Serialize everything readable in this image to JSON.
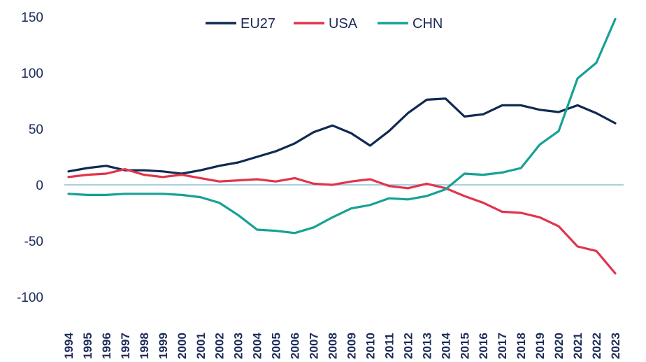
{
  "chart_data": {
    "type": "line",
    "title": "",
    "xlabel": "",
    "ylabel": "",
    "ylim": [
      -100,
      150
    ],
    "yticks": [
      -100,
      -50,
      0,
      50,
      100,
      150
    ],
    "ytick_labels": [
      "-100",
      "-50",
      "0",
      "50",
      "100",
      "150"
    ],
    "zero_line": true,
    "legend_position": "top-center",
    "categories": [
      "1994",
      "1995",
      "1996",
      "1997",
      "1998",
      "1999",
      "2000",
      "2001",
      "2002",
      "2003",
      "2004",
      "2005",
      "2006",
      "2007",
      "2008",
      "2009",
      "2010",
      "2011",
      "2012",
      "2013",
      "2014",
      "2015",
      "2016",
      "2017",
      "2018",
      "2019",
      "2020",
      "2021",
      "2022",
      "2023"
    ],
    "series": [
      {
        "name": "EU27",
        "color": "#0f2a52",
        "values": [
          12,
          15,
          17,
          13,
          13,
          12,
          10,
          13,
          17,
          20,
          25,
          30,
          37,
          47,
          53,
          46,
          35,
          48,
          64,
          76,
          77,
          61,
          63,
          71,
          71,
          67,
          65,
          71,
          64,
          55
        ]
      },
      {
        "name": "USA",
        "color": "#e0354c",
        "values": [
          7,
          9,
          10,
          14,
          9,
          7,
          9,
          6,
          3,
          4,
          5,
          3,
          6,
          1,
          0,
          3,
          5,
          -1,
          -3,
          1,
          -3,
          -10,
          -16,
          -24,
          -25,
          -29,
          -37,
          -55,
          -59,
          -79
        ]
      },
      {
        "name": "CHN",
        "color": "#17a195",
        "values": [
          -8,
          -9,
          -9,
          -8,
          -8,
          -8,
          -9,
          -11,
          -16,
          -27,
          -40,
          -41,
          -43,
          -38,
          -29,
          -21,
          -18,
          -12,
          -13,
          -10,
          -4,
          10,
          9,
          11,
          15,
          36,
          48,
          95,
          109,
          148
        ]
      }
    ]
  }
}
